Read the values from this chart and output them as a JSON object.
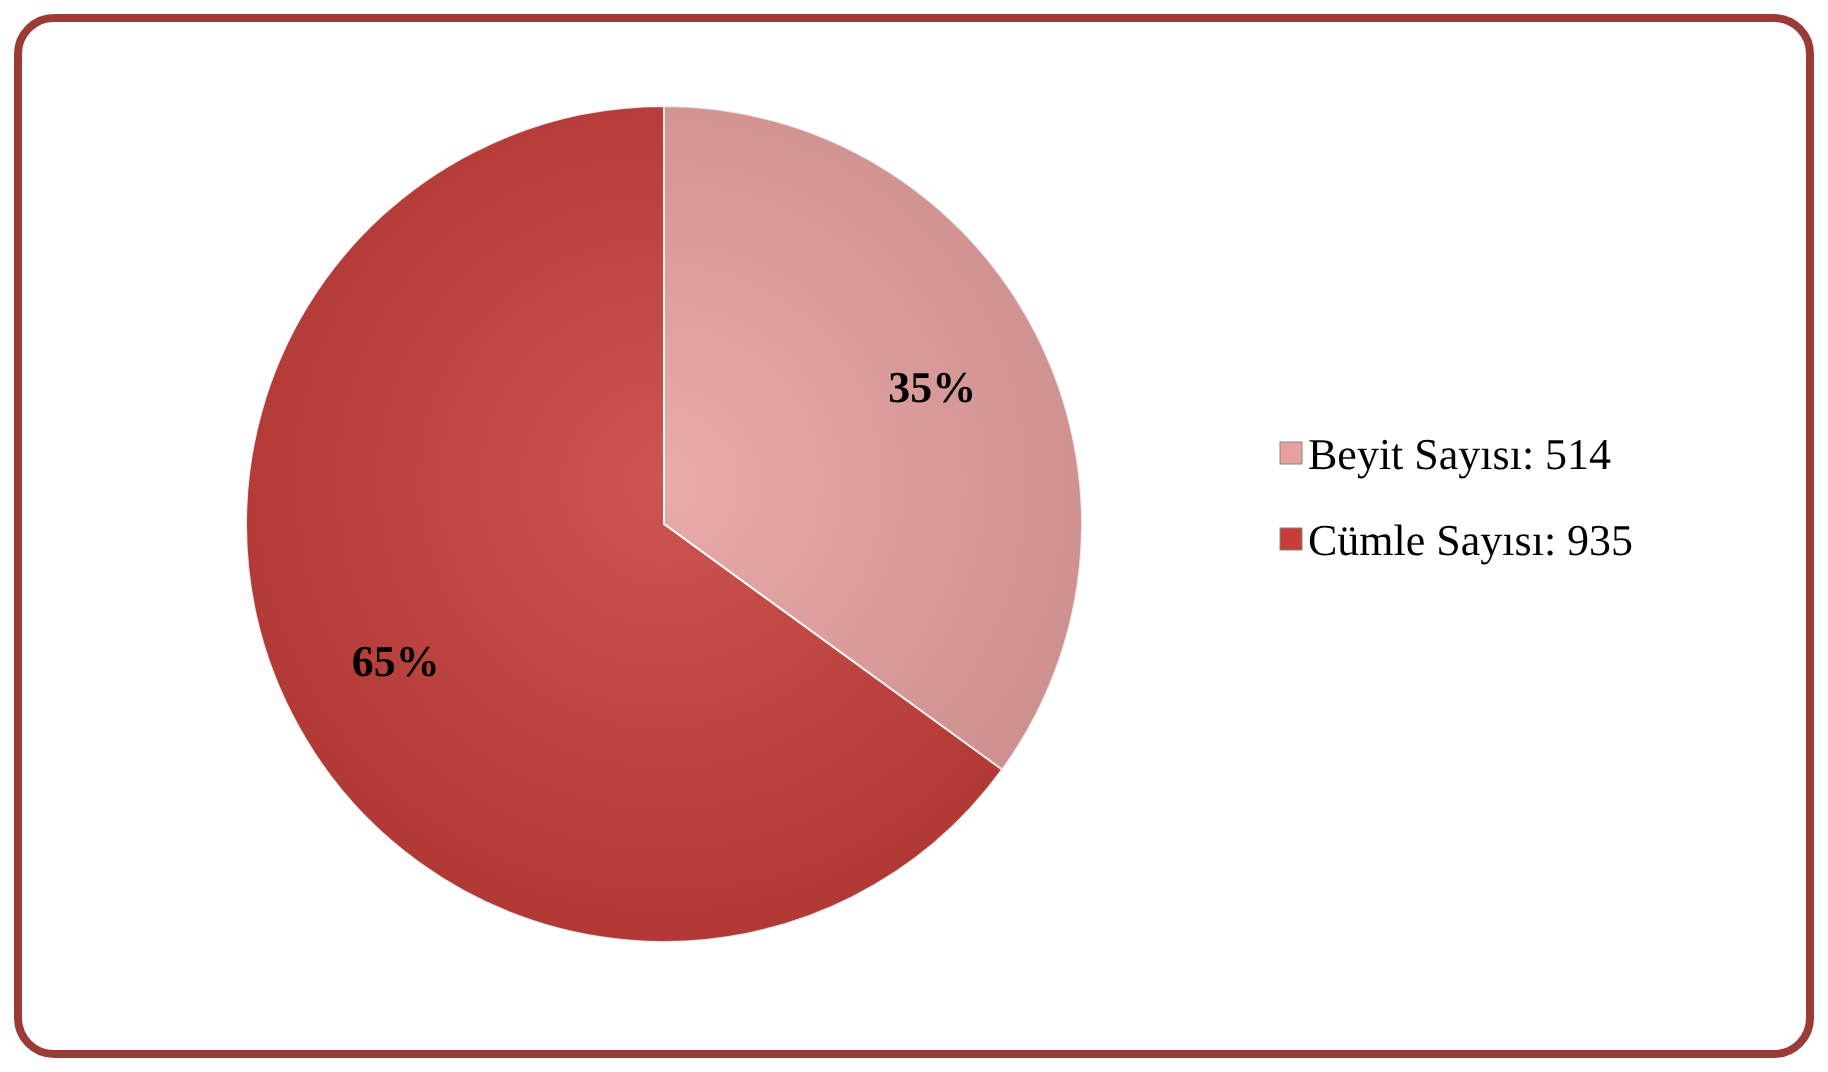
{
  "chart_data": {
    "type": "pie",
    "categories": [
      "Beyit Sayısı: 514",
      "Cümle Sayısı: 935"
    ],
    "values": [
      35,
      65
    ],
    "colors": [
      "#e6a09e",
      "#c63d38"
    ],
    "value_labels": [
      "35%",
      "65%"
    ],
    "legend": "right"
  }
}
